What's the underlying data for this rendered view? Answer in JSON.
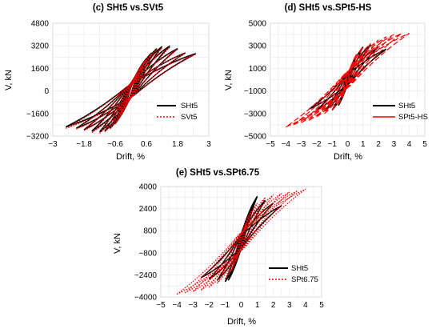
{
  "colors": {
    "sht5": "#000000",
    "comparison": "#ff0000",
    "grid": "#d9d9d9",
    "frame": "#bfbfbf"
  },
  "chart_data": [
    {
      "id": "c",
      "type": "line",
      "title": "(c) SHt5 vs.SVt5",
      "xlabel": "Drift, %",
      "ylabel": "V, kN",
      "xlim": [
        -3,
        3
      ],
      "ylim": [
        -3200,
        4800
      ],
      "xticks": [
        -3,
        -1.8,
        -0.6,
        0.6,
        1.8,
        3
      ],
      "yticks": [
        4800,
        3200,
        1600,
        0,
        -1600,
        -3200
      ],
      "grid": true,
      "legend_position": "lower-right",
      "series": [
        {
          "name": "SHt5",
          "style": "solid",
          "color": "#000000",
          "peak_drift": [
            0.3,
            0.45,
            0.6,
            0.8,
            1.0,
            1.2,
            1.5,
            1.8,
            2.1,
            2.5
          ],
          "peak_shear": [
            1300,
            1800,
            2300,
            2700,
            3000,
            3150,
            3200,
            3000,
            2700,
            2650
          ],
          "neg_peak_drift": [
            -0.3,
            -0.45,
            -0.6,
            -0.8,
            -1.0,
            -1.2,
            -1.5,
            -1.8,
            -2.1,
            -2.5
          ],
          "neg_peak_shear": [
            -1400,
            -1900,
            -2300,
            -2650,
            -2850,
            -2900,
            -2850,
            -2750,
            -2650,
            -2550
          ]
        },
        {
          "name": "SVt5",
          "style": "dotted",
          "color": "#ff0000",
          "peak_drift": [
            0.3,
            0.45,
            0.6,
            0.8,
            1.0,
            1.2,
            1.5,
            1.8,
            2.1,
            2.5
          ],
          "peak_shear": [
            1250,
            1750,
            2250,
            2650,
            2950,
            3050,
            3100,
            2950,
            2700,
            2600
          ],
          "neg_peak_drift": [
            -0.3,
            -0.45,
            -0.6,
            -0.8,
            -1.0,
            -1.2,
            -1.5,
            -1.8,
            -2.1,
            -2.5
          ],
          "neg_peak_shear": [
            -1400,
            -1900,
            -2350,
            -2700,
            -2900,
            -3000,
            -2950,
            -2800,
            -2700,
            -2650
          ]
        }
      ]
    },
    {
      "id": "d",
      "type": "line",
      "title": "(d) SHt5 vs.SPt5-HS",
      "xlabel": "Drift, %",
      "ylabel": "V, kN",
      "xlim": [
        -5,
        5
      ],
      "ylim": [
        -5000,
        5000
      ],
      "xticks": [
        -5,
        -4,
        -3,
        -2,
        -1,
        0,
        1,
        2,
        3,
        4,
        5
      ],
      "yticks": [
        5000,
        3000,
        1000,
        -1000,
        -3000,
        -5000
      ],
      "grid": true,
      "legend_position": "lower-right",
      "series": [
        {
          "name": "SHt5",
          "style": "solid",
          "color": "#000000",
          "peak_drift": [
            0.3,
            0.6,
            1.0,
            1.5,
            2.0,
            2.5
          ],
          "peak_shear": [
            1300,
            2200,
            2900,
            3100,
            2900,
            2700
          ],
          "neg_peak_drift": [
            -0.3,
            -0.6,
            -1.0,
            -1.5,
            -2.0,
            -2.5
          ],
          "neg_peak_shear": [
            -1400,
            -2300,
            -2700,
            -2800,
            -2700,
            -2600
          ]
        },
        {
          "name": "SPt5-HS",
          "style": "dashed",
          "color": "#ff0000",
          "peak_drift": [
            0.3,
            0.6,
            1.0,
            1.5,
            2.0,
            2.5,
            3.0,
            3.5,
            4.0
          ],
          "peak_shear": [
            1400,
            2300,
            2900,
            3200,
            3500,
            3800,
            4000,
            4100,
            4100
          ],
          "neg_peak_drift": [
            -0.3,
            -0.6,
            -1.0,
            -1.5,
            -2.0,
            -2.5,
            -3.0,
            -3.5,
            -4.0
          ],
          "neg_peak_shear": [
            -1300,
            -2200,
            -2700,
            -3000,
            -3300,
            -3600,
            -3800,
            -4000,
            -4200
          ]
        }
      ]
    },
    {
      "id": "e",
      "type": "line",
      "title": "(e) SHt5 vs.SPt6.75",
      "xlabel": "Drift, %",
      "ylabel": "V, kN",
      "xlim": [
        -5,
        5
      ],
      "ylim": [
        -4000,
        4000
      ],
      "xticks": [
        -5,
        -4,
        -3,
        -2,
        -1,
        0,
        1,
        2,
        3,
        4,
        5
      ],
      "yticks": [
        4000,
        2400,
        800,
        -800,
        -2400,
        -4000
      ],
      "grid": true,
      "legend_position": "lower-right",
      "series": [
        {
          "name": "SHt5",
          "style": "solid",
          "color": "#000000",
          "peak_drift": [
            0.3,
            0.6,
            0.8,
            1.0,
            1.5,
            2.0,
            2.5
          ],
          "peak_shear": [
            1300,
            2200,
            2900,
            3300,
            3000,
            2800,
            2600
          ],
          "neg_peak_drift": [
            -0.3,
            -0.6,
            -0.8,
            -1.0,
            -1.5,
            -2.0,
            -2.5
          ],
          "neg_peak_shear": [
            -1400,
            -2300,
            -2800,
            -2900,
            -2800,
            -2700,
            -2600
          ]
        },
        {
          "name": "SPt6.75",
          "style": "dotted",
          "color": "#ff0000",
          "peak_drift": [
            0.3,
            0.6,
            1.0,
            1.5,
            2.0,
            2.5,
            3.0,
            3.5,
            4.0
          ],
          "peak_shear": [
            1400,
            2200,
            2800,
            3200,
            3400,
            3500,
            3600,
            3700,
            3800
          ],
          "neg_peak_drift": [
            -0.3,
            -0.6,
            -1.0,
            -1.5,
            -2.0,
            -2.5,
            -3.0,
            -3.5,
            -4.0
          ],
          "neg_peak_shear": [
            -1300,
            -2100,
            -2700,
            -3000,
            -3300,
            -3500,
            -3600,
            -3700,
            -3800
          ]
        }
      ]
    }
  ]
}
